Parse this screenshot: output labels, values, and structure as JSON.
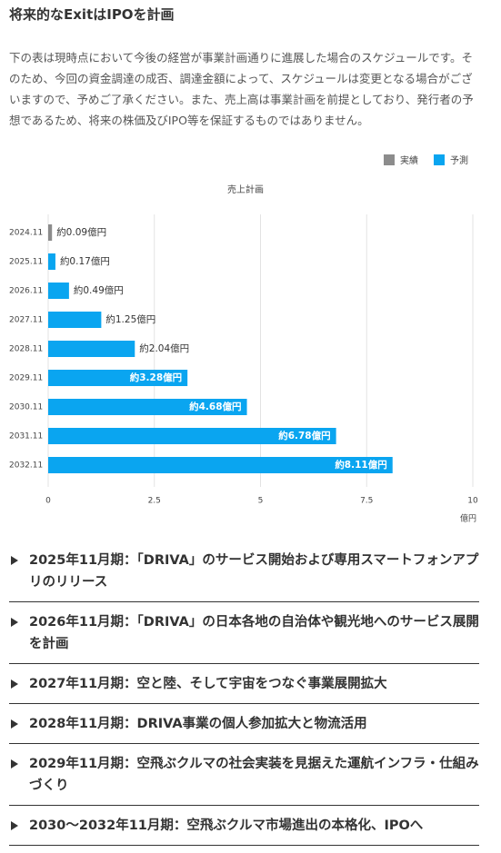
{
  "title": "将来的なExitはIPOを計画",
  "description": "下の表は現時点において今後の経営が事業計画通りに進展した場合のスケジュールです。そのため、今回の資金調達の成否、調達金額によって、スケジュールは変更となる場合がございますので、予めご了承ください。また、売上高は事業計画を前提としており、発行者の予想であるため、将来の株価及びIPO等を保証するものではありません。",
  "chart_data": {
    "type": "bar",
    "orientation": "horizontal",
    "title": "売上計画",
    "x_label": "億円",
    "categories": [
      "2024.11",
      "2025.11",
      "2026.11",
      "2027.11",
      "2028.11",
      "2029.11",
      "2030.11",
      "2031.11",
      "2032.11"
    ],
    "series": [
      {
        "name": "実績",
        "color": "#8c8c8c",
        "values": [
          0.09,
          null,
          null,
          null,
          null,
          null,
          null,
          null,
          null
        ],
        "value_labels": [
          "約0.09億円",
          null,
          null,
          null,
          null,
          null,
          null,
          null,
          null
        ]
      },
      {
        "name": "予測",
        "color": "#0aa5f0",
        "values": [
          null,
          0.17,
          0.49,
          1.25,
          2.04,
          3.28,
          4.68,
          6.78,
          8.11
        ],
        "value_labels": [
          null,
          "約0.17億円",
          "約0.49億円",
          "約1.25億円",
          "約2.04億円",
          "約3.28億円",
          "約4.68億円",
          "約6.78億円",
          "約8.11億円"
        ]
      }
    ],
    "xlim": [
      0,
      10
    ],
    "xticks": [
      0,
      2.5,
      5,
      7.5,
      10
    ],
    "grid": true,
    "legend": "top-right"
  },
  "milestones": [
    "2025年11月期：「DRIVA」のサービス開始および専用スマートフォンアプリのリリース",
    "2026年11月期：「DRIVA」の日本各地の自治体や観光地へのサービス展開を計画",
    "2027年11月期：空と陸、そして宇宙をつなぐ事業展開拡大",
    "2028年11月期：DRIVA事業の個人参加拡大と物流活用",
    "2029年11月期：空飛ぶクルマの社会実装を見据えた運航インフラ・仕組みづくり",
    "2030〜2032年11月期：空飛ぶクルマ市場進出の本格化、IPOへ"
  ]
}
